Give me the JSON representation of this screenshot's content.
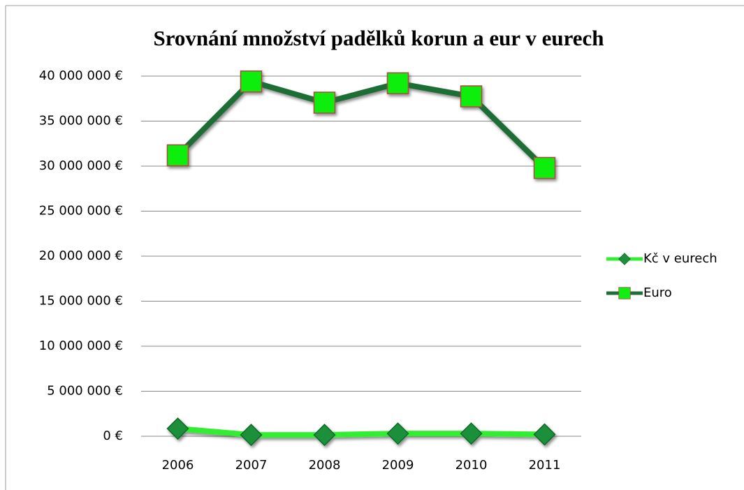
{
  "chart_data": {
    "type": "line",
    "title": "Srovnání  množství padělků korun a eur v eurech",
    "categories": [
      "2006",
      "2007",
      "2008",
      "2009",
      "2010",
      "2011"
    ],
    "series": [
      {
        "name": "Kč v eurech",
        "color": "#33ee33",
        "marker": "diamond",
        "marker_color": "#1f8f3a",
        "marker_edge": "#0f6a28",
        "values": [
          850000,
          150000,
          150000,
          300000,
          300000,
          200000
        ]
      },
      {
        "name": "Euro",
        "color": "#1e6e36",
        "marker": "square",
        "marker_color": "#11ee11",
        "marker_edge": "#b2473f",
        "values": [
          31200000,
          39400000,
          37050000,
          39200000,
          37750000,
          29800000
        ]
      }
    ],
    "ylim": [
      0,
      40000000
    ],
    "yticks": [
      {
        "value": 0,
        "label": "0 €"
      },
      {
        "value": 5000000,
        "label": "5 000 000 €"
      },
      {
        "value": 10000000,
        "label": "10 000 000 €"
      },
      {
        "value": 15000000,
        "label": "15 000 000 €"
      },
      {
        "value": 20000000,
        "label": "20 000 000 €"
      },
      {
        "value": 25000000,
        "label": "25 000 000 €"
      },
      {
        "value": 30000000,
        "label": "30 000 000 €"
      },
      {
        "value": 35000000,
        "label": "35 000 000 €"
      },
      {
        "value": 40000000,
        "label": "40 000 000 €"
      }
    ],
    "grid": true,
    "legend": "right"
  }
}
